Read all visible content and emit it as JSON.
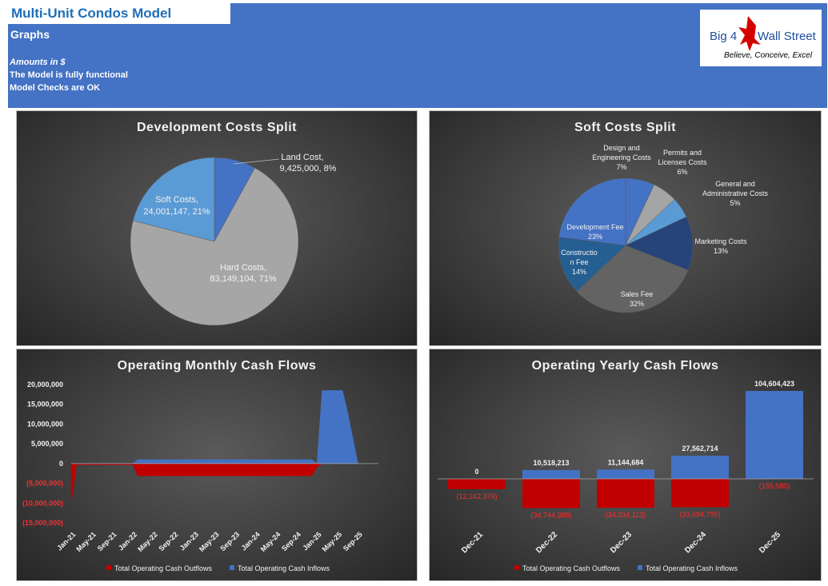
{
  "header": {
    "title": "Multi-Unit Condos Model",
    "subtitle": "Graphs",
    "amounts_note": "Amounts in $",
    "functional_note": "The Model is fully functional",
    "checks_note": "Model Checks are OK",
    "logo": {
      "big4": "Big 4",
      "wall": "Wall Street",
      "tagline": "Believe, Conceive, Excel"
    }
  },
  "colors": {
    "header": "#4472c4",
    "outflow": "#c00000",
    "inflow": "#4472c4",
    "hard": "#a6a6a6",
    "soft": "#5b9bd5",
    "land": "#4472c4"
  },
  "chart_data": [
    {
      "type": "pie",
      "title": "Development Costs Split",
      "slices": [
        {
          "label": "Land Cost,",
          "value_text": "9,425,000, 8%",
          "value": 9425000,
          "percent": 8,
          "color": "#4472c4"
        },
        {
          "label": "Hard Costs,",
          "value_text": "83,149,104, 71%",
          "value": 83149104,
          "percent": 71,
          "color": "#a6a6a6"
        },
        {
          "label": "Soft Costs,",
          "value_text": "24,001,147, 21%",
          "value": 24001147,
          "percent": 21,
          "color": "#5b9bd5"
        }
      ]
    },
    {
      "type": "pie",
      "title": "Soft Costs Split",
      "slices": [
        {
          "lines": [
            "Design and",
            "Engineering Costs",
            "7%"
          ],
          "percent": 7,
          "color": "#4472c4"
        },
        {
          "lines": [
            "Permits and",
            "Licenses Costs",
            "6%"
          ],
          "percent": 6,
          "color": "#a5a5a5"
        },
        {
          "lines": [
            "General and",
            "Administrative Costs",
            "5%"
          ],
          "percent": 5,
          "color": "#5b9bd5"
        },
        {
          "lines": [
            "Marketing Costs",
            "13%"
          ],
          "percent": 13,
          "color": "#264478"
        },
        {
          "lines": [
            "Sales Fee",
            "32%"
          ],
          "percent": 32,
          "color": "#636363"
        },
        {
          "lines": [
            "Constructio",
            "n Fee",
            "14%"
          ],
          "percent": 14,
          "color": "#255e91"
        },
        {
          "lines": [
            "Development Fee",
            "23%"
          ],
          "percent": 23,
          "color": "#4472c4"
        }
      ]
    },
    {
      "type": "area",
      "title": "Operating Monthly Cash Flows",
      "y_ticks": [
        "20,000,000",
        "15,000,000",
        "10,000,000",
        "5,000,000",
        "0",
        "(5,000,000)",
        "(10,000,000)",
        "(15,000,000)"
      ],
      "ylim": [
        -15000000,
        20000000
      ],
      "x_ticks": [
        "Jan-21",
        "May-21",
        "Sep-21",
        "Jan-22",
        "May-22",
        "Sep-22",
        "Jan-23",
        "May-23",
        "Sep-23",
        "Jan-24",
        "May-24",
        "Sep-24",
        "Jan-25",
        "May-25",
        "Sep-25"
      ],
      "months": 60,
      "series": [
        {
          "name": "Total Operating Cash Outflows",
          "color": "#c00000",
          "points": [
            [
              0,
              -10000000
            ],
            [
              1,
              -300000
            ],
            [
              12,
              -300000
            ],
            [
              13,
              -3100000
            ],
            [
              47,
              -3100000
            ],
            [
              48,
              -900000
            ],
            [
              49,
              0
            ]
          ]
        },
        {
          "name": "Total Operating Cash Inflows",
          "color": "#4472c4",
          "points": [
            [
              0,
              0
            ],
            [
              12,
              0
            ],
            [
              13,
              1000000
            ],
            [
              47,
              1000000
            ],
            [
              48,
              0
            ],
            [
              49,
              18500000
            ],
            [
              53,
              18500000
            ],
            [
              54,
              13000000
            ],
            [
              56,
              0
            ]
          ]
        }
      ]
    },
    {
      "type": "bar",
      "title": "Operating Yearly Cash Flows",
      "categories": [
        "Dec-21",
        "Dec-22",
        "Dec-23",
        "Dec-24",
        "Dec-25"
      ],
      "series": [
        {
          "name": "Total Operating Cash Outflows",
          "color": "#c00000",
          "values": [
            -12242379,
            -34744389,
            -34334113,
            -33694795,
            -155580
          ],
          "labels": [
            "(12,242,379)",
            "(34,744,389)",
            "(34,334,113)",
            "(33,694,795)",
            "(155,580)"
          ]
        },
        {
          "name": "Total Operating Cash Inflows",
          "color": "#4472c4",
          "values": [
            0,
            10518213,
            11144684,
            27562714,
            104604423
          ],
          "labels": [
            "0",
            "10,518,213",
            "11,144,684",
            "27,562,714",
            "104,604,423"
          ]
        }
      ]
    }
  ]
}
